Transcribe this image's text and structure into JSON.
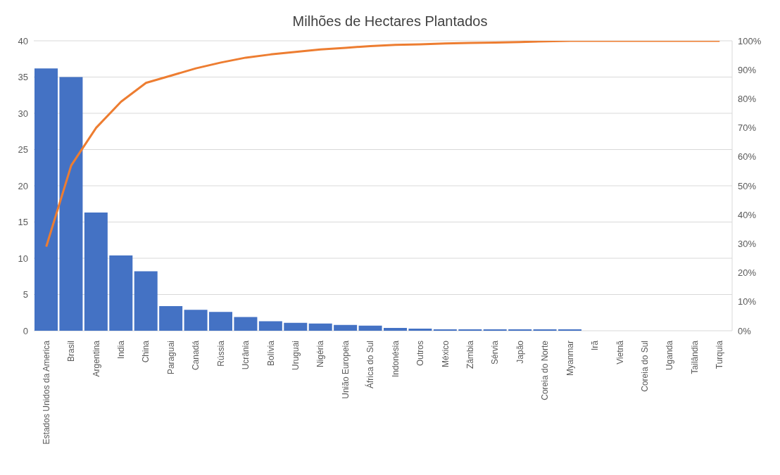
{
  "chart_data": {
    "type": "bar",
    "title": "Milhões de Hectares Plantados",
    "categories": [
      "Estados Unidos da America",
      "Brasil",
      "Argentina",
      "India",
      "China",
      "Paraguai",
      "Canadá",
      "Rússia",
      "Ucrânia",
      "Bolívia",
      "Uruguai",
      "Nigéria",
      "União Europeia",
      "África do Sul",
      "Indonésia",
      "Outros",
      "México",
      "Zâmbia",
      "Sérvia",
      "Japão",
      "Coreia do Norte",
      "Myanmar",
      "Irã",
      "Vietnã",
      "Coreia do Sul",
      "Uganda",
      "Tailândia",
      "Turquia"
    ],
    "series": [
      {
        "color": "#4472c4",
        "values": [
          36.2,
          35.0,
          16.3,
          10.4,
          8.2,
          3.4,
          2.9,
          2.6,
          1.9,
          1.3,
          1.1,
          1.0,
          0.8,
          0.7,
          0.4,
          0.3,
          0.2,
          0.2,
          0.2,
          0.2,
          0.2,
          0.2,
          0,
          0,
          0,
          0,
          0,
          0
        ]
      },
      {
        "type": "line",
        "axis": "y2",
        "color": "#ed7d31",
        "values": [
          29,
          57,
          70,
          79,
          85.5,
          88,
          90.5,
          92.5,
          94.2,
          95.3,
          96.2,
          97,
          97.6,
          98.2,
          98.6,
          98.8,
          99.1,
          99.3,
          99.4,
          99.6,
          99.8,
          100,
          100,
          100,
          100,
          100,
          100,
          100
        ]
      }
    ],
    "ylim": [
      0,
      40
    ],
    "yticks": [
      0,
      5,
      10,
      15,
      20,
      25,
      30,
      35,
      40
    ],
    "y2lim": [
      0,
      100
    ],
    "y2ticks": [
      {
        "value": 0,
        "label": "0%"
      },
      {
        "value": 10,
        "label": "10%"
      },
      {
        "value": 20,
        "label": "20%"
      },
      {
        "value": 30,
        "label": "30%"
      },
      {
        "value": 40,
        "label": "40%"
      },
      {
        "value": 50,
        "label": "50%"
      },
      {
        "value": 60,
        "label": "60%"
      },
      {
        "value": 70,
        "label": "70%"
      },
      {
        "value": 80,
        "label": "80%"
      },
      {
        "value": 90,
        "label": "90%"
      },
      {
        "value": 100,
        "label": "100%"
      }
    ],
    "grid": "y",
    "marker": "none"
  }
}
